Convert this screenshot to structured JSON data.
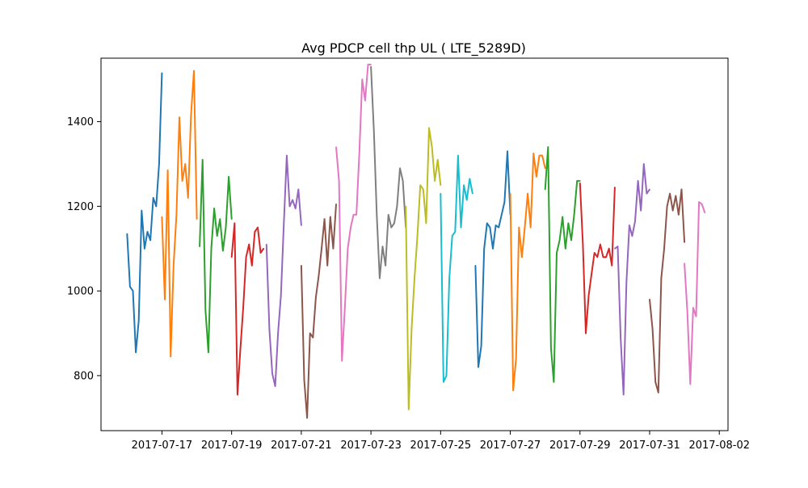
{
  "chart_data": {
    "type": "line",
    "title": "Avg PDCP cell thp UL ( LTE_5289D)",
    "xlabel": "",
    "ylabel": "",
    "x_range": [
      "2017-07-15T06:00",
      "2017-08-02T06:00"
    ],
    "ylim": [
      670,
      1550
    ],
    "x_ticks": [
      "2017-07-17",
      "2017-07-19",
      "2017-07-21",
      "2017-07-23",
      "2017-07-25",
      "2017-07-27",
      "2017-07-29",
      "2017-07-31",
      "2017-08-02"
    ],
    "y_ticks": [
      800,
      1000,
      1200,
      1400
    ],
    "grid": false,
    "legend": "none",
    "colors": [
      "#1f77b4",
      "#ff7f0e",
      "#2ca02c",
      "#d62728",
      "#9467bd",
      "#8c564b",
      "#e377c2",
      "#7f7f7f",
      "#bcbd22",
      "#17becf"
    ],
    "series": [
      {
        "x": [
          "2017-07-16T00:00",
          "2017-07-16T02:00",
          "2017-07-16T04:00",
          "2017-07-16T06:00",
          "2017-07-16T08:00",
          "2017-07-16T10:00",
          "2017-07-16T12:00",
          "2017-07-16T14:00",
          "2017-07-16T16:00",
          "2017-07-16T18:00",
          "2017-07-16T20:00",
          "2017-07-16T22:00",
          "2017-07-17T00:00"
        ],
        "y": [
          1135,
          1010,
          1000,
          855,
          930,
          1190,
          1100,
          1140,
          1120,
          1220,
          1200,
          1300,
          1515
        ]
      },
      {
        "x": [
          "2017-07-17T00:00",
          "2017-07-17T02:00",
          "2017-07-17T04:00",
          "2017-07-17T06:00",
          "2017-07-17T08:00",
          "2017-07-17T10:00",
          "2017-07-17T12:00",
          "2017-07-17T14:00",
          "2017-07-17T16:00",
          "2017-07-17T18:00",
          "2017-07-17T20:00",
          "2017-07-17T22:00",
          "2017-07-18T00:00"
        ],
        "y": [
          1175,
          980,
          1285,
          845,
          1060,
          1180,
          1410,
          1260,
          1300,
          1220,
          1415,
          1520,
          1170
        ]
      },
      {
        "x": [
          "2017-07-18T02:00",
          "2017-07-18T04:00",
          "2017-07-18T06:00",
          "2017-07-18T08:00",
          "2017-07-18T10:00",
          "2017-07-18T12:00",
          "2017-07-18T14:00",
          "2017-07-18T16:00",
          "2017-07-18T18:00",
          "2017-07-18T20:00",
          "2017-07-18T22:00",
          "2017-07-19T00:00"
        ],
        "y": [
          1105,
          1310,
          955,
          855,
          1100,
          1195,
          1130,
          1170,
          1095,
          1150,
          1270,
          1170
        ]
      },
      {
        "x": [
          "2017-07-19T00:00",
          "2017-07-19T02:00",
          "2017-07-19T04:00",
          "2017-07-19T06:00",
          "2017-07-19T08:00",
          "2017-07-19T10:00",
          "2017-07-19T12:00",
          "2017-07-19T14:00",
          "2017-07-19T16:00",
          "2017-07-19T18:00",
          "2017-07-19T20:00",
          "2017-07-19T22:00"
        ],
        "y": [
          1080,
          1160,
          755,
          860,
          960,
          1080,
          1110,
          1060,
          1140,
          1150,
          1090,
          1100
        ]
      },
      {
        "x": [
          "2017-07-20T00:00",
          "2017-07-20T02:00",
          "2017-07-20T04:00",
          "2017-07-20T06:00",
          "2017-07-20T08:00",
          "2017-07-20T10:00",
          "2017-07-20T12:00",
          "2017-07-20T14:00",
          "2017-07-20T16:00",
          "2017-07-20T18:00",
          "2017-07-20T20:00",
          "2017-07-20T22:00",
          "2017-07-21T00:00"
        ],
        "y": [
          1110,
          910,
          805,
          775,
          900,
          990,
          1160,
          1320,
          1200,
          1215,
          1195,
          1240,
          1155
        ]
      },
      {
        "x": [
          "2017-07-21T00:00",
          "2017-07-21T02:00",
          "2017-07-21T04:00",
          "2017-07-21T06:00",
          "2017-07-21T08:00",
          "2017-07-21T10:00",
          "2017-07-21T12:00",
          "2017-07-21T14:00",
          "2017-07-21T16:00",
          "2017-07-21T18:00",
          "2017-07-21T20:00",
          "2017-07-21T22:00",
          "2017-07-22T00:00"
        ],
        "y": [
          1060,
          790,
          700,
          900,
          890,
          985,
          1035,
          1100,
          1170,
          1060,
          1175,
          1100,
          1205
        ]
      },
      {
        "x": [
          "2017-07-22T00:00",
          "2017-07-22T02:00",
          "2017-07-22T04:00",
          "2017-07-22T06:00",
          "2017-07-22T08:00",
          "2017-07-22T10:00",
          "2017-07-22T12:00",
          "2017-07-22T14:00",
          "2017-07-22T16:00",
          "2017-07-22T18:00",
          "2017-07-22T20:00",
          "2017-07-22T22:00",
          "2017-07-23T00:00"
        ],
        "y": [
          1340,
          1260,
          835,
          960,
          1100,
          1150,
          1180,
          1180,
          1325,
          1500,
          1450,
          1535,
          1535
        ]
      },
      {
        "x": [
          "2017-07-23T00:00",
          "2017-07-23T02:00",
          "2017-07-23T04:00",
          "2017-07-23T06:00",
          "2017-07-23T08:00",
          "2017-07-23T10:00",
          "2017-07-23T12:00",
          "2017-07-23T14:00",
          "2017-07-23T16:00",
          "2017-07-23T18:00",
          "2017-07-23T20:00",
          "2017-07-23T22:00",
          "2017-07-24T00:00"
        ],
        "y": [
          1530,
          1380,
          1180,
          1030,
          1105,
          1060,
          1180,
          1150,
          1160,
          1200,
          1290,
          1260,
          1150
        ]
      },
      {
        "x": [
          "2017-07-24T00:00",
          "2017-07-24T02:00",
          "2017-07-24T04:00",
          "2017-07-24T06:00",
          "2017-07-24T08:00",
          "2017-07-24T10:00",
          "2017-07-24T12:00",
          "2017-07-24T14:00",
          "2017-07-24T16:00",
          "2017-07-24T18:00",
          "2017-07-24T20:00",
          "2017-07-24T22:00",
          "2017-07-25T00:00"
        ],
        "y": [
          1200,
          720,
          910,
          1030,
          1130,
          1250,
          1240,
          1160,
          1385,
          1340,
          1260,
          1310,
          1250
        ]
      },
      {
        "x": [
          "2017-07-25T00:00",
          "2017-07-25T02:00",
          "2017-07-25T04:00",
          "2017-07-25T06:00",
          "2017-07-25T08:00",
          "2017-07-25T10:00",
          "2017-07-25T12:00",
          "2017-07-25T14:00",
          "2017-07-25T16:00",
          "2017-07-25T18:00",
          "2017-07-25T20:00",
          "2017-07-25T22:00"
        ],
        "y": [
          1230,
          785,
          800,
          1030,
          1130,
          1140,
          1320,
          1150,
          1250,
          1215,
          1265,
          1230
        ]
      },
      {
        "x": [
          "2017-07-26T00:00",
          "2017-07-26T02:00",
          "2017-07-26T04:00",
          "2017-07-26T06:00",
          "2017-07-26T08:00",
          "2017-07-26T10:00",
          "2017-07-26T12:00",
          "2017-07-26T14:00",
          "2017-07-26T16:00",
          "2017-07-26T18:00",
          "2017-07-26T20:00",
          "2017-07-26T22:00",
          "2017-07-27T00:00"
        ],
        "y": [
          1060,
          820,
          870,
          1100,
          1160,
          1150,
          1100,
          1155,
          1150,
          1180,
          1210,
          1330,
          1180
        ]
      },
      {
        "x": [
          "2017-07-27T00:00",
          "2017-07-27T02:00",
          "2017-07-27T04:00",
          "2017-07-27T06:00",
          "2017-07-27T08:00",
          "2017-07-27T10:00",
          "2017-07-27T12:00",
          "2017-07-27T14:00",
          "2017-07-27T16:00",
          "2017-07-27T18:00",
          "2017-07-27T20:00",
          "2017-07-27T22:00",
          "2017-07-28T00:00"
        ],
        "y": [
          1230,
          765,
          840,
          1150,
          1080,
          1150,
          1230,
          1150,
          1325,
          1270,
          1320,
          1320,
          1290
        ]
      },
      {
        "x": [
          "2017-07-28T00:00",
          "2017-07-28T02:00",
          "2017-07-28T04:00",
          "2017-07-28T06:00",
          "2017-07-28T08:00",
          "2017-07-28T10:00",
          "2017-07-28T12:00",
          "2017-07-28T14:00",
          "2017-07-28T16:00",
          "2017-07-28T18:00",
          "2017-07-28T20:00",
          "2017-07-28T22:00",
          "2017-07-29T00:00"
        ],
        "y": [
          1240,
          1340,
          865,
          785,
          1090,
          1120,
          1175,
          1100,
          1160,
          1120,
          1180,
          1260,
          1260
        ]
      },
      {
        "x": [
          "2017-07-29T00:00",
          "2017-07-29T02:00",
          "2017-07-29T04:00",
          "2017-07-29T06:00",
          "2017-07-29T08:00",
          "2017-07-29T10:00",
          "2017-07-29T12:00",
          "2017-07-29T14:00",
          "2017-07-29T16:00",
          "2017-07-29T18:00",
          "2017-07-29T20:00",
          "2017-07-29T22:00",
          "2017-07-30T00:00"
        ],
        "y": [
          1255,
          1110,
          900,
          990,
          1040,
          1090,
          1080,
          1110,
          1080,
          1080,
          1100,
          1060,
          1245
        ]
      },
      {
        "x": [
          "2017-07-30T00:00",
          "2017-07-30T02:00",
          "2017-07-30T04:00",
          "2017-07-30T06:00",
          "2017-07-30T08:00",
          "2017-07-30T10:00",
          "2017-07-30T12:00",
          "2017-07-30T14:00",
          "2017-07-30T16:00",
          "2017-07-30T18:00",
          "2017-07-30T20:00",
          "2017-07-30T22:00",
          "2017-07-31T00:00"
        ],
        "y": [
          1100,
          1105,
          890,
          755,
          1020,
          1155,
          1130,
          1165,
          1260,
          1190,
          1300,
          1230,
          1240
        ]
      },
      {
        "x": [
          "2017-07-31T00:00",
          "2017-07-31T02:00",
          "2017-07-31T04:00",
          "2017-07-31T06:00",
          "2017-07-31T08:00",
          "2017-07-31T10:00",
          "2017-07-31T12:00",
          "2017-07-31T14:00",
          "2017-07-31T16:00",
          "2017-07-31T18:00",
          "2017-07-31T20:00",
          "2017-07-31T22:00",
          "2017-08-01T00:00"
        ],
        "y": [
          980,
          910,
          785,
          760,
          1030,
          1100,
          1200,
          1230,
          1190,
          1225,
          1180,
          1240,
          1115
        ]
      },
      {
        "x": [
          "2017-08-01T00:00",
          "2017-08-01T02:00",
          "2017-08-01T04:00",
          "2017-08-01T06:00",
          "2017-08-01T08:00",
          "2017-08-01T10:00",
          "2017-08-01T12:00",
          "2017-08-01T14:00"
        ],
        "y": [
          1065,
          950,
          780,
          960,
          940,
          1210,
          1205,
          1185
        ]
      }
    ]
  }
}
